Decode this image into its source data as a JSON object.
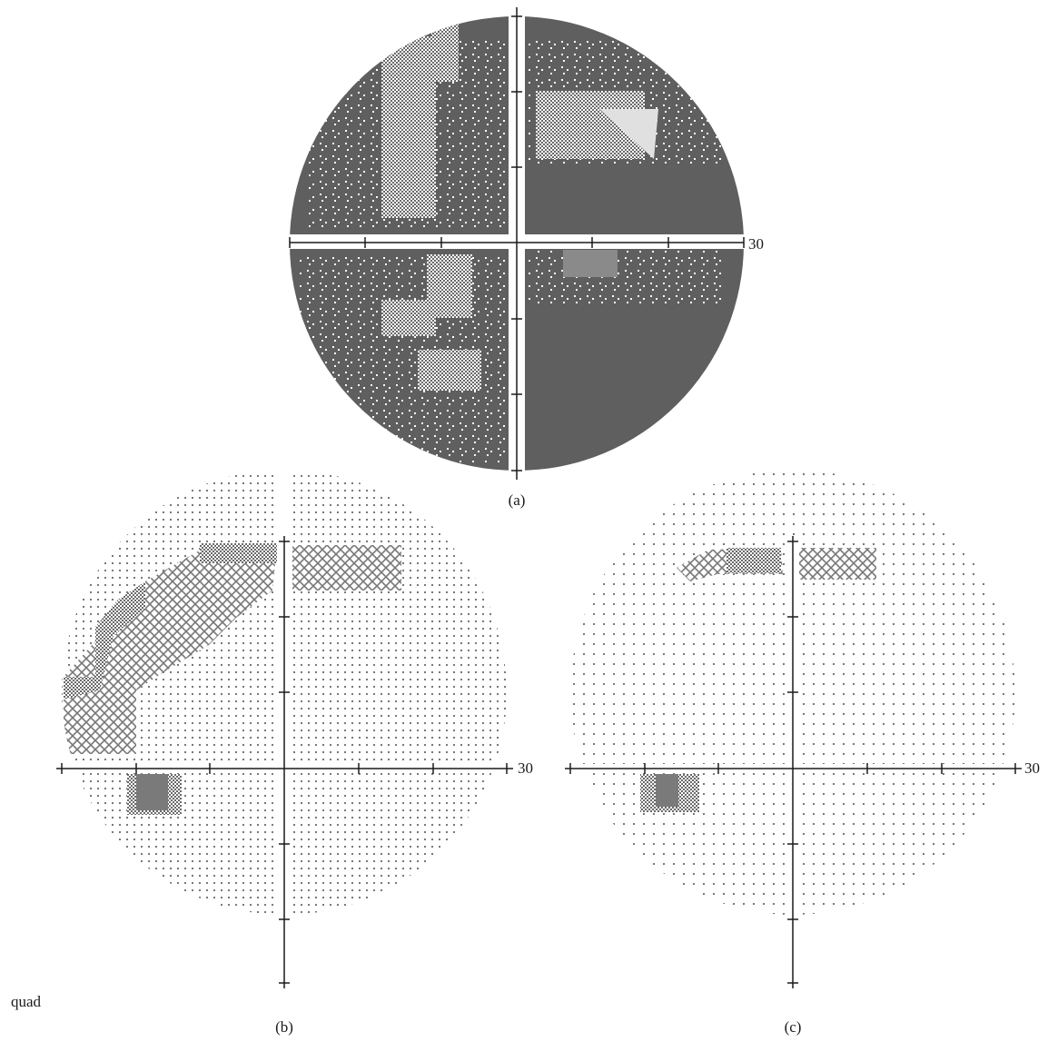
{
  "panels": [
    {
      "id": "a",
      "caption": "(a)",
      "axis_label": "30",
      "style": "dense"
    },
    {
      "id": "b",
      "caption": "(b)",
      "axis_label": "30",
      "style": "sparse"
    },
    {
      "id": "c",
      "caption": "(c)",
      "axis_label": "30",
      "style": "sparse"
    }
  ],
  "side_label": "quad",
  "colors": {
    "background": "#ffffff",
    "dark_fill": "#5f5f5f",
    "mid_fill": "#9a9a9a",
    "light_fill": "#c8c8c8",
    "dot": "#6a6a6a",
    "axis": "#1a1a1a"
  }
}
